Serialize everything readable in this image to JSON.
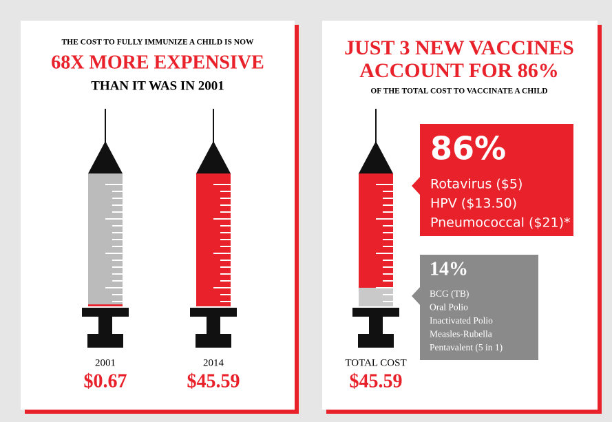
{
  "left_panel": {
    "headline_1": "THE COST TO FULLY IMMUNIZE A CHILD IS NOW",
    "headline_2": "68X MORE EXPENSIVE",
    "headline_3": "THAN IT WAS IN 2001",
    "syringes": [
      {
        "year": "2001",
        "cost": {
          "value": 0.67,
          "label": "$0.67"
        }
      },
      {
        "year": "2014",
        "cost": {
          "value": 45.59,
          "label": "$45.59"
        }
      }
    ]
  },
  "right_panel": {
    "headline_1": "JUST 3 NEW VACCINES",
    "headline_2": "ACCOUNT FOR 86%",
    "subhead": "OF THE TOTAL COST TO VACCINATE A CHILD",
    "total_label": "TOTAL COST",
    "total": "$45.59",
    "share_new": {
      "value": 86,
      "label": "86%",
      "items": [
        "Rotavirus ($5)",
        "HPV ($13.50)",
        "Pneumococcal ($21)*"
      ]
    },
    "share_other": {
      "value": 14,
      "label": "14%",
      "items": [
        "BCG (TB)",
        "Oral Polio",
        "Inactivated Polio",
        "Measles-Rubella",
        "Pentavalent (5 in 1)"
      ]
    }
  }
}
